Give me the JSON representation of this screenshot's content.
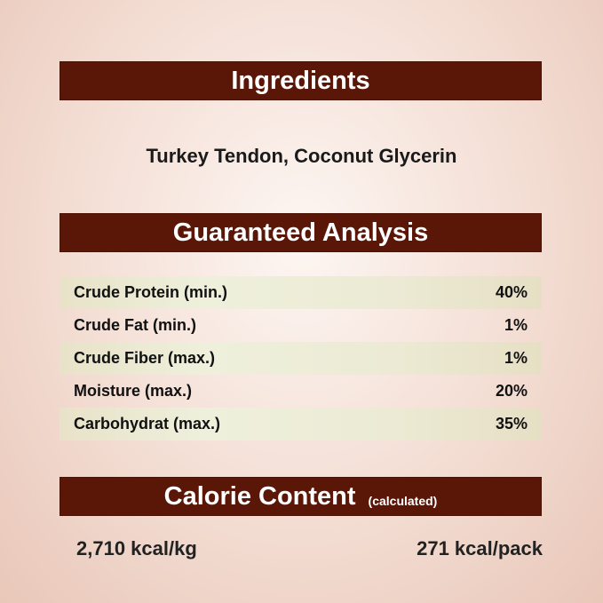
{
  "ingredients": {
    "title": "Ingredients",
    "text": "Turkey Tendon, Coconut Glycerin"
  },
  "analysis": {
    "title": "Guaranteed Analysis",
    "rows": [
      {
        "label": "Crude Protein (min.)",
        "value": "40%"
      },
      {
        "label": "Crude Fat (min.)",
        "value": "1%"
      },
      {
        "label": "Crude Fiber (max.)",
        "value": "1%"
      },
      {
        "label": "Moisture (max.)",
        "value": "20%"
      },
      {
        "label": "Carbohydrat (max.)",
        "value": "35%"
      }
    ]
  },
  "calorie": {
    "title": "Calorie Content",
    "note": "(calculated)",
    "per_kg": "2,710 kcal/kg",
    "per_pack": "271 kcal/pack"
  },
  "colors": {
    "banner": "#5a1708",
    "row_shade": "#ecead4"
  }
}
